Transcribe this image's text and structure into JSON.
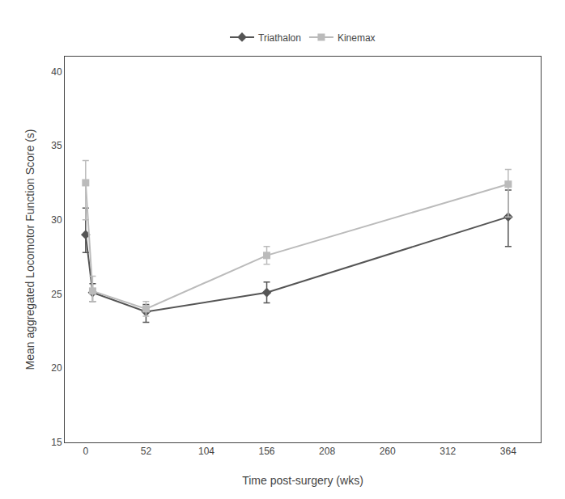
{
  "chart_data": {
    "type": "line",
    "x_label": "Time post-surgery (wks)",
    "y_label": "Mean aggregated Locomotor Function Score (s)",
    "series": [
      {
        "name": "Triathalon",
        "color": "#555555",
        "marker": "diamond",
        "line_style": "solid",
        "x": [
          0,
          6,
          52,
          156,
          364
        ],
        "values": [
          29.0,
          25.1,
          23.8,
          25.1,
          30.2
        ],
        "yerr_lower": [
          1.2,
          0.6,
          0.7,
          0.7,
          2.0
        ],
        "yerr_upper": [
          1.8,
          0.6,
          0.5,
          0.7,
          1.8
        ]
      },
      {
        "name": "Kinemax",
        "color": "#bbbbbb",
        "marker": "square",
        "line_style": "solid",
        "x": [
          0,
          6,
          52,
          156,
          364
        ],
        "values": [
          32.5,
          25.2,
          24.0,
          27.6,
          32.4
        ],
        "yerr_lower": [
          2.5,
          0.7,
          0.5,
          0.6,
          2.2
        ],
        "yerr_upper": [
          1.5,
          1.0,
          0.5,
          0.6,
          1.0
        ]
      }
    ],
    "xlim": [
      -18,
      392
    ],
    "ylim": [
      15,
      41
    ],
    "xticks": [
      0,
      52,
      104,
      156,
      208,
      260,
      312,
      364
    ],
    "yticks": [
      15,
      20,
      25,
      30,
      35,
      40
    ],
    "grid": false,
    "legend": "top"
  }
}
